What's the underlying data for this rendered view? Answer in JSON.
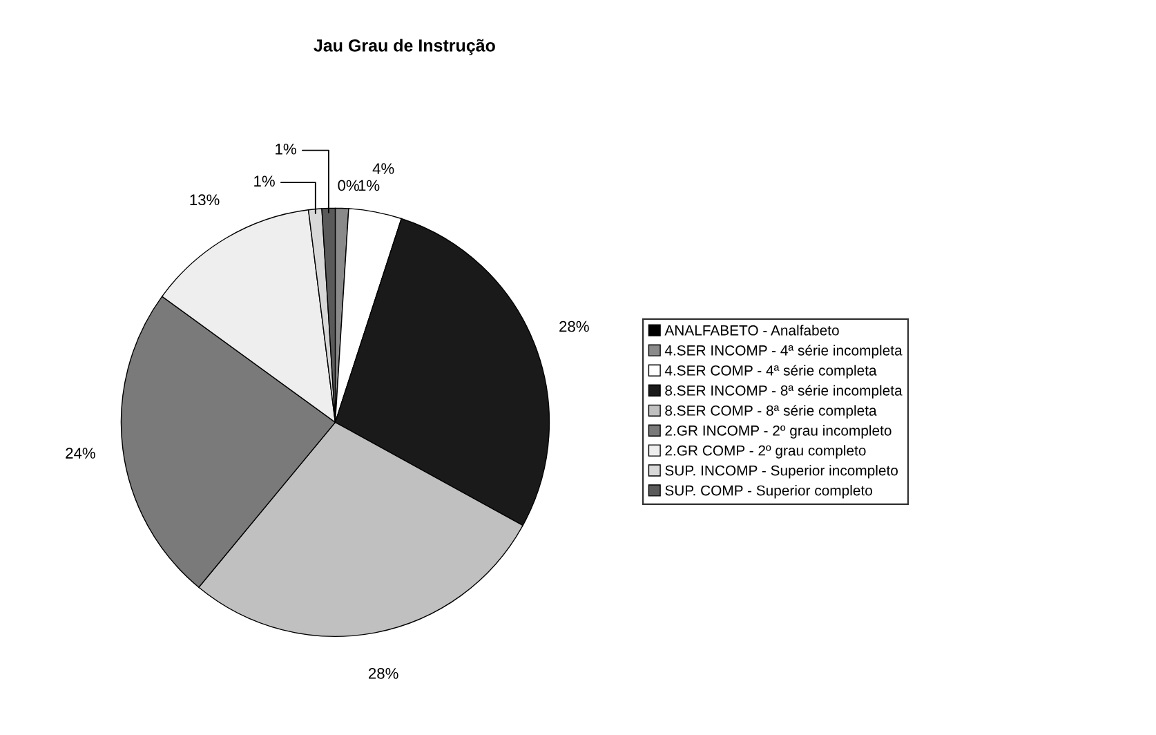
{
  "chart_data": {
    "type": "pie",
    "title": "Jau Grau de Instrução",
    "categories": [
      "ANALFABETO - Analfabeto",
      "4.SER INCOMP - 4ª série incompleta",
      "4.SER COMP - 4ª série completa",
      "8.SER INCOMP - 8ª série incompleta",
      "8.SER COMP - 8ª série completa",
      "2.GR INCOMP - 2º grau incompleto",
      "2.GR COMP - 2º grau completo",
      "SUP. INCOMP - Superior incompleto",
      "SUP. COMP - Superior completo"
    ],
    "values": [
      0,
      1,
      4,
      28,
      28,
      24,
      13,
      1,
      1
    ],
    "value_labels": [
      "0%",
      "1%",
      "4%",
      "28%",
      "28%",
      "24%",
      "13%",
      "1%",
      "1%"
    ],
    "colors": [
      "#000000",
      "#8a8a8a",
      "#ffffff",
      "#1a1a1a",
      "#c0c0c0",
      "#7a7a7a",
      "#eeeeee",
      "#d8d8d8",
      "#5a5a5a"
    ],
    "legend": "right"
  }
}
